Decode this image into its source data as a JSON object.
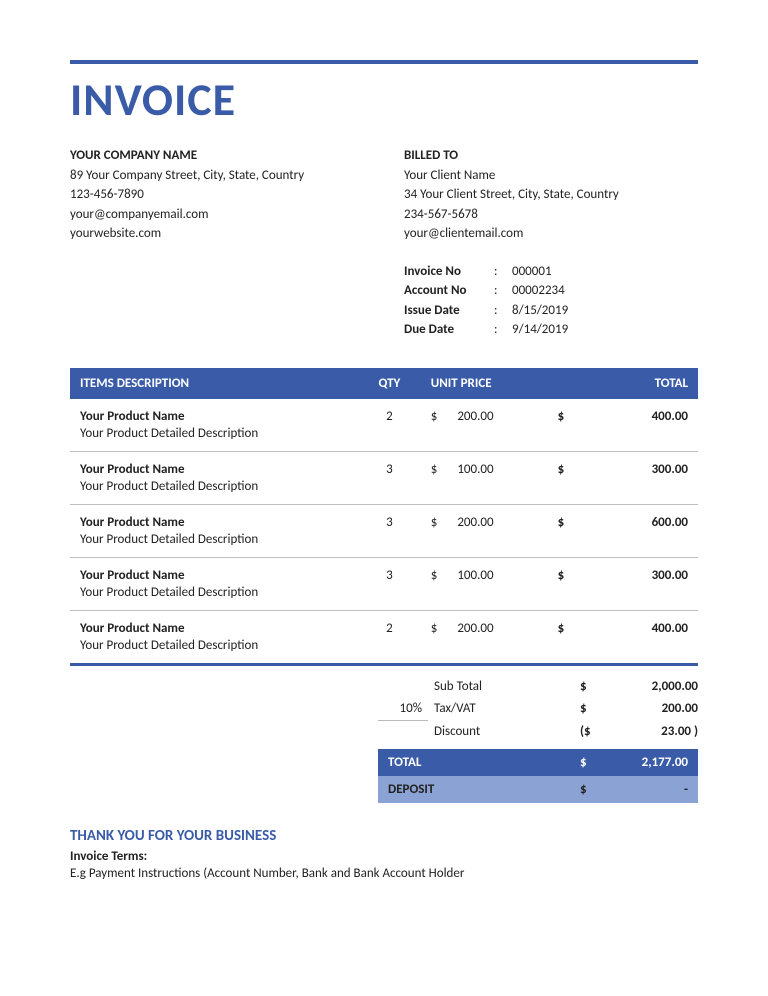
{
  "colors": {
    "brand": "#3a5ba7",
    "brand_light": "#8aa2d4",
    "text": "#222222",
    "rule_gray": "#bfbfbf",
    "background": "#ffffff"
  },
  "title": "INVOICE",
  "company": {
    "label": "YOUR COMPANY NAME",
    "address": "89 Your Company Street, City, State, Country",
    "phone": "123-456-7890",
    "email": "your@companyemail.com",
    "website": "yourwebsite.com"
  },
  "billed_to": {
    "label": "BILLED TO",
    "name": "Your Client Name",
    "address": "34 Your Client Street, City, State, Country",
    "phone": "234-567-5678",
    "email": "your@clientemail.com"
  },
  "meta": {
    "invoice_no_label": "Invoice No",
    "invoice_no": "000001",
    "account_no_label": "Account No",
    "account_no": "00002234",
    "issue_date_label": "Issue Date",
    "issue_date": "8/15/2019",
    "due_date_label": "Due Date",
    "due_date": "9/14/2019"
  },
  "table": {
    "headers": {
      "desc": "ITEMS DESCRIPTION",
      "qty": "QTY",
      "unit": "UNIT PRICE",
      "total": "TOTAL"
    },
    "rows": [
      {
        "name": "Your Product Name",
        "desc": "Your Product Detailed Description",
        "qty": "2",
        "unit_curr": "$",
        "unit_price": "200.00",
        "total_curr": "$",
        "total": "400.00"
      },
      {
        "name": "Your Product Name",
        "desc": "Your Product Detailed Description",
        "qty": "3",
        "unit_curr": "$",
        "unit_price": "100.00",
        "total_curr": "$",
        "total": "300.00"
      },
      {
        "name": "Your Product Name",
        "desc": "Your Product Detailed Description",
        "qty": "3",
        "unit_curr": "$",
        "unit_price": "200.00",
        "total_curr": "$",
        "total": "600.00"
      },
      {
        "name": "Your Product Name",
        "desc": "Your Product Detailed Description",
        "qty": "3",
        "unit_curr": "$",
        "unit_price": "100.00",
        "total_curr": "$",
        "total": "300.00"
      },
      {
        "name": "Your Product Name",
        "desc": "Your Product Detailed Description",
        "qty": "2",
        "unit_curr": "$",
        "unit_price": "200.00",
        "total_curr": "$",
        "total": "400.00"
      }
    ]
  },
  "summary": {
    "subtotal_label": "Sub Total",
    "subtotal_curr": "$",
    "subtotal": "2,000.00",
    "tax_pct": "10%",
    "tax_label": "Tax/VAT",
    "tax_curr": "$",
    "tax": "200.00",
    "discount_label": "Discount",
    "discount_curr": "($",
    "discount": "23.00 )",
    "total_label": "TOTAL",
    "total_curr": "$",
    "total": "2,177.00",
    "deposit_label": "DEPOSIT",
    "deposit_curr": "$",
    "deposit": "-"
  },
  "footer": {
    "thanks": "THANK YOU FOR YOUR BUSINESS",
    "terms_label": "Invoice Terms:",
    "terms_text": "E.g Payment Instructions (Account Number, Bank and Bank Account Holder"
  }
}
